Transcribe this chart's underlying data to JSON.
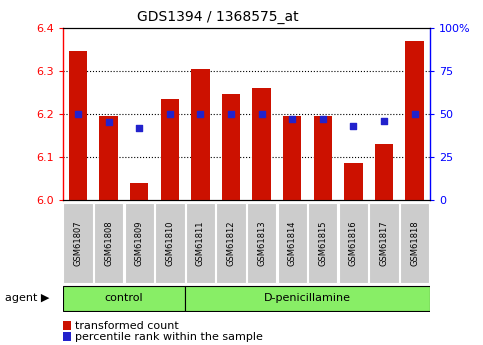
{
  "title": "GDS1394 / 1368575_at",
  "categories": [
    "GSM61807",
    "GSM61808",
    "GSM61809",
    "GSM61810",
    "GSM61811",
    "GSM61812",
    "GSM61813",
    "GSM61814",
    "GSM61815",
    "GSM61816",
    "GSM61817",
    "GSM61818"
  ],
  "bar_values": [
    6.345,
    6.195,
    6.04,
    6.235,
    6.305,
    6.245,
    6.26,
    6.195,
    6.195,
    6.085,
    6.13,
    6.37
  ],
  "dot_values_pct": [
    50,
    45,
    42,
    50,
    50,
    50,
    50,
    47,
    47,
    43,
    46,
    50
  ],
  "y_min": 6.0,
  "y_max": 6.4,
  "y_ticks": [
    6.0,
    6.1,
    6.2,
    6.3,
    6.4
  ],
  "right_ticks": [
    0,
    25,
    50,
    75,
    100
  ],
  "bar_color": "#cc1100",
  "dot_color": "#2222cc",
  "control_group_count": 4,
  "treatment_group_count": 8,
  "control_label": "control",
  "treatment_label": "D-penicillamine",
  "agent_label": "agent",
  "legend_bar_label": "transformed count",
  "legend_dot_label": "percentile rank within the sample",
  "group_box_color": "#88ee66",
  "sample_box_color": "#cccccc",
  "title_fontsize": 10,
  "axis_fontsize": 8,
  "legend_fontsize": 8
}
